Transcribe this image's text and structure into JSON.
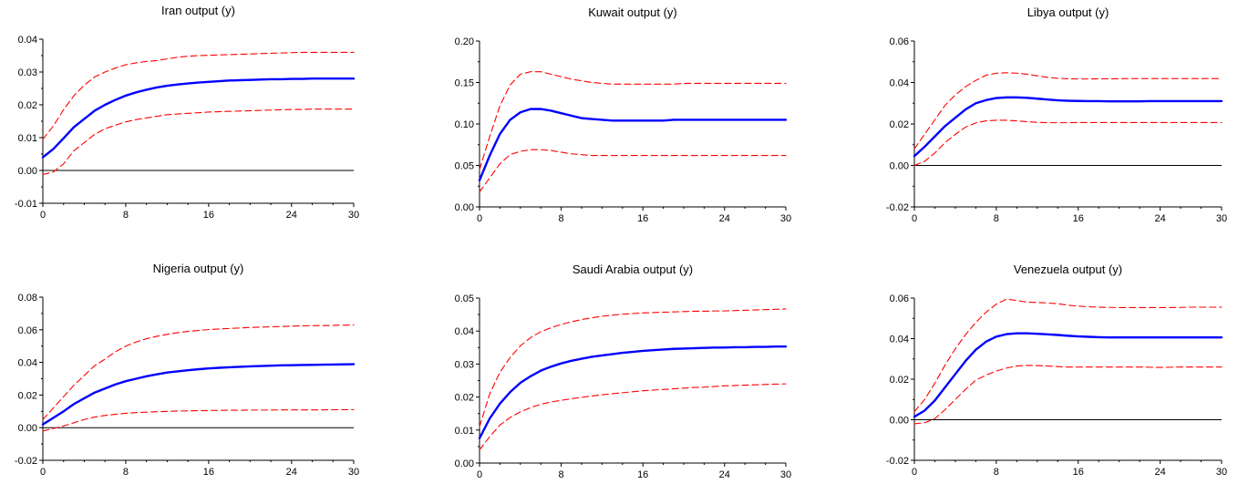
{
  "chart_data": [
    {
      "type": "line",
      "title": "Iran output (y)",
      "xlim": [
        0,
        30
      ],
      "ylim": [
        -0.01,
        0.04
      ],
      "xticks": [
        0,
        8,
        16,
        24,
        30
      ],
      "yticks": [
        -0.01,
        0.0,
        0.01,
        0.02,
        0.03,
        0.04
      ],
      "ytick_labels": [
        "-0.01",
        "0.00",
        "0.01",
        "0.02",
        "0.03",
        "0.04"
      ],
      "x": [
        0,
        1,
        2,
        3,
        4,
        5,
        6,
        7,
        8,
        9,
        10,
        11,
        12,
        13,
        14,
        15,
        16,
        17,
        18,
        19,
        20,
        21,
        22,
        23,
        24,
        25,
        26,
        27,
        28,
        29,
        30
      ],
      "series": [
        {
          "role": "response",
          "color": "#0000ff",
          "style": "solid",
          "values": [
            0.004,
            0.0065,
            0.0098,
            0.0132,
            0.0157,
            0.0182,
            0.02,
            0.0215,
            0.0228,
            0.0238,
            0.0246,
            0.0253,
            0.0258,
            0.0262,
            0.0265,
            0.0268,
            0.027,
            0.0272,
            0.0274,
            0.0275,
            0.0276,
            0.0277,
            0.0278,
            0.0278,
            0.0279,
            0.0279,
            0.028,
            0.028,
            0.028,
            0.028,
            0.028
          ]
        },
        {
          "role": "upper",
          "color": "#ff0000",
          "style": "dashed",
          "values": [
            0.0095,
            0.0135,
            0.0185,
            0.0228,
            0.026,
            0.0285,
            0.03,
            0.0312,
            0.0322,
            0.0328,
            0.0332,
            0.0335,
            0.034,
            0.0345,
            0.0348,
            0.035,
            0.0351,
            0.0352,
            0.0353,
            0.0354,
            0.0355,
            0.0356,
            0.0357,
            0.0358,
            0.0359,
            0.036,
            0.036,
            0.036,
            0.036,
            0.036,
            0.036
          ]
        },
        {
          "role": "lower",
          "color": "#ff0000",
          "style": "dashed",
          "values": [
            -0.0012,
            -0.0005,
            0.002,
            0.006,
            0.0085,
            0.011,
            0.0127,
            0.0138,
            0.0148,
            0.0155,
            0.016,
            0.0165,
            0.017,
            0.0172,
            0.0174,
            0.0176,
            0.0178,
            0.0179,
            0.018,
            0.0181,
            0.0182,
            0.0183,
            0.0184,
            0.0185,
            0.0186,
            0.0186,
            0.0187,
            0.0187,
            0.0187,
            0.0187,
            0.0187
          ]
        }
      ]
    },
    {
      "type": "line",
      "title": "Kuwait output (y)",
      "xlim": [
        0,
        30
      ],
      "ylim": [
        0.0,
        0.2
      ],
      "xticks": [
        0,
        8,
        16,
        24,
        30
      ],
      "yticks": [
        0.0,
        0.05,
        0.1,
        0.15,
        0.2
      ],
      "ytick_labels": [
        "0.00",
        "0.05",
        "0.10",
        "0.15",
        "0.20"
      ],
      "x": [
        0,
        1,
        2,
        3,
        4,
        5,
        6,
        7,
        8,
        9,
        10,
        11,
        12,
        13,
        14,
        15,
        16,
        17,
        18,
        19,
        20,
        21,
        22,
        23,
        24,
        25,
        26,
        27,
        28,
        29,
        30
      ],
      "series": [
        {
          "role": "response",
          "color": "#0000ff",
          "style": "solid",
          "values": [
            0.032,
            0.062,
            0.088,
            0.105,
            0.114,
            0.118,
            0.118,
            0.116,
            0.113,
            0.11,
            0.107,
            0.106,
            0.105,
            0.104,
            0.104,
            0.104,
            0.104,
            0.104,
            0.104,
            0.105,
            0.105,
            0.105,
            0.105,
            0.105,
            0.105,
            0.105,
            0.105,
            0.105,
            0.105,
            0.105,
            0.105
          ]
        },
        {
          "role": "upper",
          "color": "#ff0000",
          "style": "dashed",
          "values": [
            0.045,
            0.085,
            0.122,
            0.147,
            0.16,
            0.163,
            0.163,
            0.16,
            0.157,
            0.154,
            0.152,
            0.15,
            0.149,
            0.148,
            0.148,
            0.148,
            0.148,
            0.148,
            0.148,
            0.148,
            0.149,
            0.149,
            0.149,
            0.149,
            0.149,
            0.149,
            0.149,
            0.149,
            0.149,
            0.149,
            0.149
          ]
        },
        {
          "role": "lower",
          "color": "#ff0000",
          "style": "dashed",
          "values": [
            0.018,
            0.035,
            0.052,
            0.063,
            0.067,
            0.069,
            0.069,
            0.068,
            0.066,
            0.064,
            0.063,
            0.062,
            0.062,
            0.062,
            0.062,
            0.062,
            0.062,
            0.062,
            0.062,
            0.062,
            0.062,
            0.062,
            0.062,
            0.062,
            0.062,
            0.062,
            0.062,
            0.062,
            0.062,
            0.062,
            0.062
          ]
        }
      ]
    },
    {
      "type": "line",
      "title": "Libya output (y)",
      "xlim": [
        0,
        30
      ],
      "ylim": [
        -0.02,
        0.06
      ],
      "xticks": [
        0,
        8,
        16,
        24,
        30
      ],
      "yticks": [
        -0.02,
        0.0,
        0.02,
        0.04,
        0.06
      ],
      "ytick_labels": [
        "-0.02",
        "0.00",
        "0.02",
        "0.04",
        "0.06"
      ],
      "x": [
        0,
        1,
        2,
        3,
        4,
        5,
        6,
        7,
        8,
        9,
        10,
        11,
        12,
        13,
        14,
        15,
        16,
        17,
        18,
        19,
        20,
        21,
        22,
        23,
        24,
        25,
        26,
        27,
        28,
        29,
        30
      ],
      "series": [
        {
          "role": "response",
          "color": "#0000ff",
          "style": "solid",
          "values": [
            0.0045,
            0.009,
            0.014,
            0.019,
            0.023,
            0.027,
            0.03,
            0.0315,
            0.0325,
            0.0328,
            0.0328,
            0.0326,
            0.0322,
            0.0318,
            0.0314,
            0.0312,
            0.0311,
            0.031,
            0.031,
            0.0309,
            0.0309,
            0.0309,
            0.0309,
            0.031,
            0.031,
            0.031,
            0.031,
            0.031,
            0.031,
            0.031,
            0.031
          ]
        },
        {
          "role": "upper",
          "color": "#ff0000",
          "style": "dashed",
          "values": [
            0.008,
            0.015,
            0.022,
            0.029,
            0.034,
            0.038,
            0.041,
            0.0435,
            0.0445,
            0.0447,
            0.0445,
            0.044,
            0.0432,
            0.0425,
            0.042,
            0.0418,
            0.0417,
            0.0417,
            0.0418,
            0.0418,
            0.0418,
            0.0419,
            0.0419,
            0.0419,
            0.0419,
            0.0419,
            0.0419,
            0.0419,
            0.0419,
            0.0419,
            0.0419
          ]
        },
        {
          "role": "lower",
          "color": "#ff0000",
          "style": "dashed",
          "values": [
            0.0,
            0.002,
            0.006,
            0.011,
            0.015,
            0.0185,
            0.0205,
            0.0215,
            0.0218,
            0.0218,
            0.0215,
            0.0211,
            0.0208,
            0.0206,
            0.0206,
            0.0206,
            0.0207,
            0.0207,
            0.0207,
            0.0207,
            0.0207,
            0.0207,
            0.0207,
            0.0207,
            0.0207,
            0.0207,
            0.0207,
            0.0207,
            0.0207,
            0.0207,
            0.0207
          ]
        }
      ]
    },
    {
      "type": "line",
      "title": "Nigeria output (y)",
      "xlim": [
        0,
        30
      ],
      "ylim": [
        -0.02,
        0.08
      ],
      "xticks": [
        0,
        8,
        16,
        24,
        30
      ],
      "yticks": [
        -0.02,
        0.0,
        0.02,
        0.04,
        0.06,
        0.08
      ],
      "ytick_labels": [
        "-0.02",
        "0.00",
        "0.02",
        "0.04",
        "0.06",
        "0.08"
      ],
      "x": [
        0,
        1,
        2,
        3,
        4,
        5,
        6,
        7,
        8,
        9,
        10,
        11,
        12,
        13,
        14,
        15,
        16,
        17,
        18,
        19,
        20,
        21,
        22,
        23,
        24,
        25,
        26,
        27,
        28,
        29,
        30
      ],
      "series": [
        {
          "role": "response",
          "color": "#0000ff",
          "style": "solid",
          "values": [
            0.002,
            0.006,
            0.01,
            0.0145,
            0.018,
            0.0215,
            0.024,
            0.0265,
            0.0285,
            0.03,
            0.0315,
            0.0327,
            0.0338,
            0.0345,
            0.0352,
            0.0358,
            0.0363,
            0.0367,
            0.037,
            0.0373,
            0.0376,
            0.0378,
            0.038,
            0.0382,
            0.0383,
            0.0384,
            0.0385,
            0.0386,
            0.0387,
            0.0388,
            0.0389
          ]
        },
        {
          "role": "upper",
          "color": "#ff0000",
          "style": "dashed",
          "values": [
            0.005,
            0.012,
            0.019,
            0.026,
            0.032,
            0.038,
            0.042,
            0.0465,
            0.05,
            0.0525,
            0.0545,
            0.056,
            0.0572,
            0.0582,
            0.059,
            0.0596,
            0.0601,
            0.0605,
            0.0608,
            0.0611,
            0.0614,
            0.0616,
            0.0618,
            0.062,
            0.0622,
            0.0624,
            0.0625,
            0.0626,
            0.0627,
            0.0628,
            0.0629
          ]
        },
        {
          "role": "lower",
          "color": "#ff0000",
          "style": "dashed",
          "values": [
            -0.002,
            -0.0005,
            0.001,
            0.003,
            0.005,
            0.0065,
            0.0075,
            0.0082,
            0.0088,
            0.0092,
            0.0095,
            0.0098,
            0.01,
            0.0102,
            0.0103,
            0.0104,
            0.0105,
            0.0106,
            0.0107,
            0.0107,
            0.0108,
            0.0108,
            0.0108,
            0.0109,
            0.0109,
            0.0109,
            0.0109,
            0.0109,
            0.011,
            0.011,
            0.011
          ]
        }
      ]
    },
    {
      "type": "line",
      "title": "Saudi Arabia output (y)",
      "xlim": [
        0,
        30
      ],
      "ylim": [
        0.0,
        0.05
      ],
      "xticks": [
        0,
        8,
        16,
        24,
        30
      ],
      "yticks": [
        0.0,
        0.01,
        0.02,
        0.03,
        0.04,
        0.05
      ],
      "ytick_labels": [
        "0.00",
        "0.01",
        "0.02",
        "0.03",
        "0.04",
        "0.05"
      ],
      "x": [
        0,
        1,
        2,
        3,
        4,
        5,
        6,
        7,
        8,
        9,
        10,
        11,
        12,
        13,
        14,
        15,
        16,
        17,
        18,
        19,
        20,
        21,
        22,
        23,
        24,
        25,
        26,
        27,
        28,
        29,
        30
      ],
      "series": [
        {
          "role": "response",
          "color": "#0000ff",
          "style": "solid",
          "values": [
            0.0075,
            0.0135,
            0.018,
            0.0215,
            0.0243,
            0.0263,
            0.028,
            0.0292,
            0.0302,
            0.031,
            0.0316,
            0.0322,
            0.0326,
            0.033,
            0.0334,
            0.0337,
            0.034,
            0.0342,
            0.0344,
            0.0346,
            0.0347,
            0.0348,
            0.0349,
            0.035,
            0.035,
            0.0351,
            0.0351,
            0.0352,
            0.0352,
            0.0353,
            0.0353
          ]
        },
        {
          "role": "upper",
          "color": "#ff0000",
          "style": "dashed",
          "values": [
            0.011,
            0.021,
            0.0275,
            0.032,
            0.0355,
            0.038,
            0.0398,
            0.041,
            0.042,
            0.0428,
            0.0435,
            0.044,
            0.0445,
            0.0448,
            0.0451,
            0.0453,
            0.0455,
            0.0456,
            0.0457,
            0.0458,
            0.0459,
            0.046,
            0.046,
            0.0461,
            0.0461,
            0.0462,
            0.0463,
            0.0464,
            0.0465,
            0.0466,
            0.0467
          ]
        },
        {
          "role": "lower",
          "color": "#ff0000",
          "style": "dashed",
          "values": [
            0.004,
            0.008,
            0.0115,
            0.0138,
            0.0155,
            0.0168,
            0.0178,
            0.0185,
            0.019,
            0.0195,
            0.0199,
            0.0203,
            0.0207,
            0.021,
            0.0213,
            0.0216,
            0.0219,
            0.0221,
            0.0223,
            0.0225,
            0.0227,
            0.0229,
            0.023,
            0.0232,
            0.0234,
            0.0235,
            0.0236,
            0.0237,
            0.0238,
            0.0239,
            0.024
          ]
        }
      ]
    },
    {
      "type": "line",
      "title": "Venezuela output (y)",
      "xlim": [
        0,
        30
      ],
      "ylim": [
        -0.02,
        0.06
      ],
      "xticks": [
        0,
        8,
        16,
        24,
        30
      ],
      "yticks": [
        -0.02,
        0.0,
        0.02,
        0.04,
        0.06
      ],
      "ytick_labels": [
        "-0.02",
        "0.00",
        "0.02",
        "0.04",
        "0.06"
      ],
      "x": [
        0,
        1,
        2,
        3,
        4,
        5,
        6,
        7,
        8,
        9,
        10,
        11,
        12,
        13,
        14,
        15,
        16,
        17,
        18,
        19,
        20,
        21,
        22,
        23,
        24,
        25,
        26,
        27,
        28,
        29,
        30
      ],
      "series": [
        {
          "role": "response",
          "color": "#0000ff",
          "style": "solid",
          "values": [
            0.0015,
            0.0045,
            0.0095,
            0.016,
            0.0225,
            0.029,
            0.0345,
            0.0385,
            0.041,
            0.0422,
            0.0426,
            0.0426,
            0.0424,
            0.0421,
            0.0418,
            0.0414,
            0.0411,
            0.0409,
            0.0407,
            0.0406,
            0.0406,
            0.0406,
            0.0406,
            0.0406,
            0.0406,
            0.0406,
            0.0406,
            0.0406,
            0.0406,
            0.0406,
            0.0406
          ]
        },
        {
          "role": "upper",
          "color": "#ff0000",
          "style": "dashed",
          "values": [
            0.004,
            0.01,
            0.018,
            0.027,
            0.035,
            0.042,
            0.048,
            0.053,
            0.057,
            0.0595,
            0.0588,
            0.058,
            0.0578,
            0.0576,
            0.0572,
            0.0565,
            0.056,
            0.0557,
            0.0555,
            0.0554,
            0.0553,
            0.0553,
            0.0553,
            0.0553,
            0.0553,
            0.0553,
            0.0554,
            0.0555,
            0.0555,
            0.0555,
            0.0555
          ]
        },
        {
          "role": "lower",
          "color": "#ff0000",
          "style": "dashed",
          "values": [
            -0.002,
            -0.0015,
            0.0005,
            0.005,
            0.01,
            0.015,
            0.0195,
            0.022,
            0.024,
            0.0255,
            0.0265,
            0.0268,
            0.0267,
            0.0265,
            0.0262,
            0.026,
            0.026,
            0.026,
            0.026,
            0.026,
            0.026,
            0.026,
            0.026,
            0.0259,
            0.0258,
            0.0259,
            0.026,
            0.026,
            0.026,
            0.026,
            0.026
          ]
        }
      ]
    }
  ]
}
